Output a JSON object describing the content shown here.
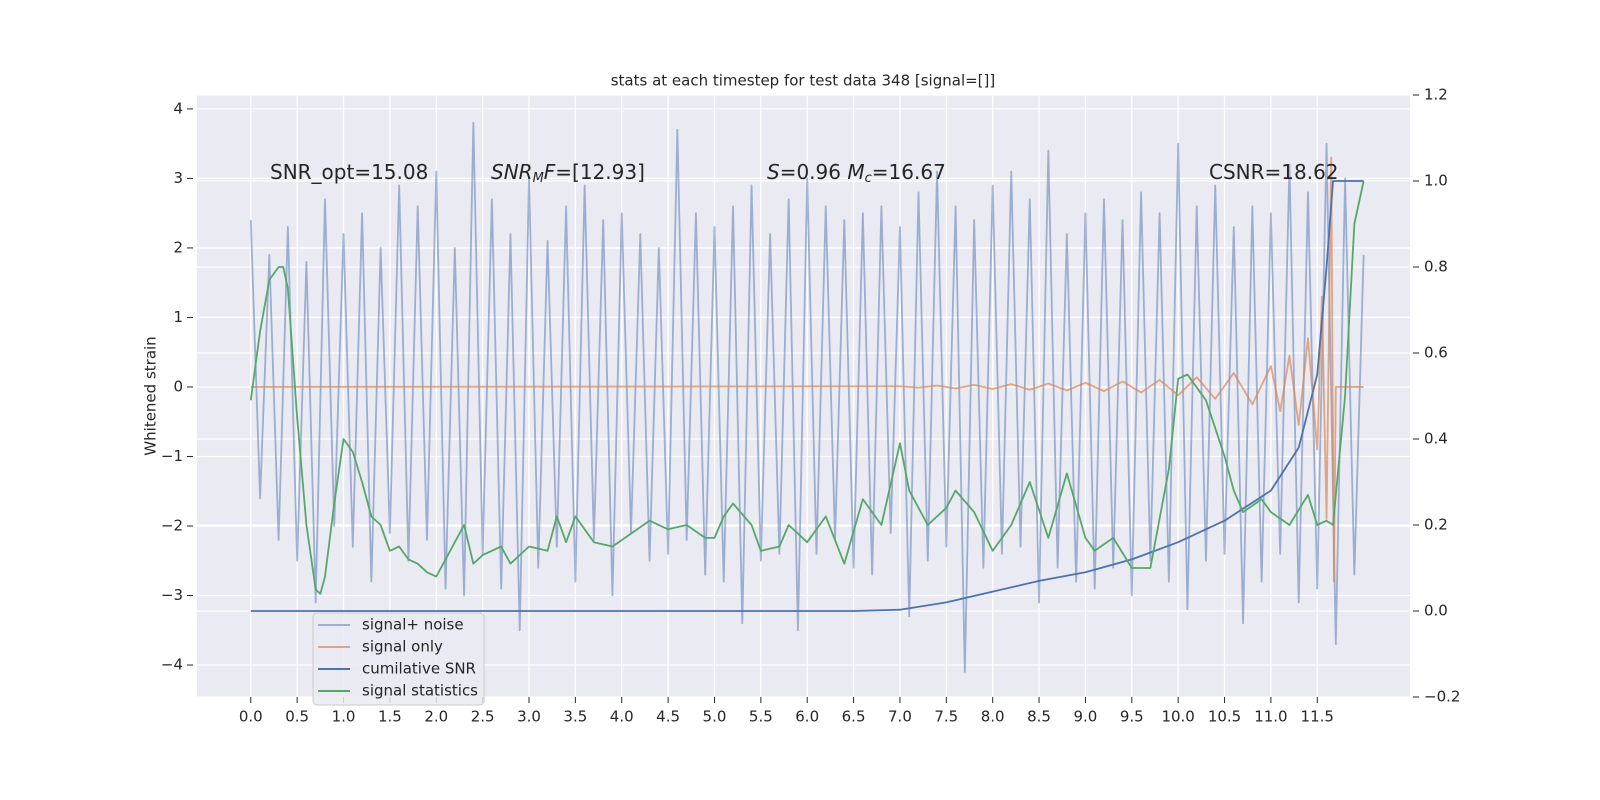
{
  "chart_data": {
    "type": "line",
    "title": "stats at each timestep for test data 348 [signal=[]]",
    "y_label": "Whitened strain",
    "background": "#eaeaf2",
    "grid": true,
    "legend_position": "lower left",
    "xlim": [
      -0.58,
      12.5
    ],
    "ylim": [
      -4.46,
      4.2
    ],
    "y2lim": [
      -0.2,
      1.2
    ],
    "xticks": [
      {
        "value": 0,
        "label": "0.0"
      },
      {
        "value": 0.5,
        "label": "0.5"
      },
      {
        "value": 1,
        "label": "1.0"
      },
      {
        "value": 1.5,
        "label": "1.5"
      },
      {
        "value": 2,
        "label": "2.0"
      },
      {
        "value": 2.5,
        "label": "2.5"
      },
      {
        "value": 3,
        "label": "3.0"
      },
      {
        "value": 3.5,
        "label": "3.5"
      },
      {
        "value": 4,
        "label": "4.0"
      },
      {
        "value": 4.5,
        "label": "4.5"
      },
      {
        "value": 5,
        "label": "5.0"
      },
      {
        "value": 5.5,
        "label": "5.5"
      },
      {
        "value": 6,
        "label": "6.0"
      },
      {
        "value": 6.5,
        "label": "6.5"
      },
      {
        "value": 7,
        "label": "7.0"
      },
      {
        "value": 7.5,
        "label": "7.5"
      },
      {
        "value": 8,
        "label": "8.0"
      },
      {
        "value": 8.5,
        "label": "8.5"
      },
      {
        "value": 9,
        "label": "9.0"
      },
      {
        "value": 9.5,
        "label": "9.5"
      },
      {
        "value": 10,
        "label": "10.0"
      },
      {
        "value": 10.5,
        "label": "10.5"
      },
      {
        "value": 11,
        "label": "11.0"
      },
      {
        "value": 11.5,
        "label": "11.5"
      }
    ],
    "yticks": [
      {
        "value": -4,
        "label": "−4"
      },
      {
        "value": -3,
        "label": "−3"
      },
      {
        "value": -2,
        "label": "−2"
      },
      {
        "value": -1,
        "label": "−1"
      },
      0,
      1,
      2,
      3,
      4
    ],
    "y2ticks": [
      {
        "value": -0.2,
        "label": "−0.2"
      },
      {
        "value": 0,
        "label": "0.0"
      },
      {
        "value": 0.2,
        "label": "0.2"
      },
      {
        "value": 0.4,
        "label": "0.4"
      },
      {
        "value": 0.6,
        "label": "0.6"
      },
      {
        "value": 0.8,
        "label": "0.8"
      },
      {
        "value": 1.0,
        "label": "1.0"
      },
      {
        "value": 1.2,
        "label": "1.2"
      }
    ],
    "annotations": [
      {
        "parts": [
          {
            "text": "SNR_opt=15.08"
          }
        ]
      },
      {
        "parts": [
          {
            "text": "SNR",
            "italic": true
          },
          {
            "text": "M",
            "italic": true,
            "sub": true
          },
          {
            "text": "F",
            "italic": true
          },
          {
            "text": "=[12.93]"
          }
        ]
      },
      {
        "parts": [
          {
            "text": "S",
            "italic": true
          },
          {
            "text": "=0.96   "
          },
          {
            "text": "M",
            "italic": true
          },
          {
            "text": "c",
            "italic": true,
            "sub": true
          },
          {
            "text": "=16.67"
          }
        ]
      },
      {
        "parts": [
          {
            "text": "CSNR=18.62"
          }
        ]
      }
    ],
    "series": [
      {
        "name": "signal+ noise",
        "color": "#4c72b0",
        "opacity": 0.5,
        "x": [
          0.0,
          0.1,
          0.2,
          0.3,
          0.4,
          0.5,
          0.6,
          0.7,
          0.8,
          0.9,
          1.0,
          1.1,
          1.2,
          1.3,
          1.4,
          1.5,
          1.6,
          1.7,
          1.8,
          1.9,
          2.0,
          2.1,
          2.2,
          2.3,
          2.4,
          2.5,
          2.6,
          2.7,
          2.8,
          2.9,
          3.0,
          3.1,
          3.2,
          3.3,
          3.4,
          3.5,
          3.6,
          3.7,
          3.8,
          3.9,
          4.0,
          4.1,
          4.2,
          4.3,
          4.4,
          4.5,
          4.6,
          4.7,
          4.8,
          4.9,
          5.0,
          5.1,
          5.2,
          5.3,
          5.4,
          5.5,
          5.6,
          5.7,
          5.8,
          5.9,
          6.0,
          6.1,
          6.2,
          6.3,
          6.4,
          6.5,
          6.6,
          6.7,
          6.8,
          6.9,
          7.0,
          7.1,
          7.2,
          7.3,
          7.4,
          7.5,
          7.6,
          7.7,
          7.8,
          7.9,
          8.0,
          8.1,
          8.2,
          8.3,
          8.4,
          8.5,
          8.6,
          8.7,
          8.8,
          8.9,
          9.0,
          9.1,
          9.2,
          9.3,
          9.4,
          9.5,
          9.6,
          9.7,
          9.8,
          9.9,
          10.0,
          10.1,
          10.2,
          10.3,
          10.4,
          10.5,
          10.6,
          10.7,
          10.8,
          10.9,
          11.0,
          11.1,
          11.2,
          11.3,
          11.4,
          11.5,
          11.6,
          11.7,
          11.8,
          11.9,
          12.0
        ],
        "values": [
          2.4,
          -1.6,
          1.9,
          -2.2,
          2.3,
          -2.5,
          1.8,
          -3.1,
          2.7,
          -2.0,
          2.2,
          -2.3,
          2.5,
          -2.8,
          2.0,
          -2.1,
          2.9,
          -2.5,
          2.6,
          -2.2,
          3.1,
          -2.9,
          2.0,
          -3.0,
          3.8,
          -2.4,
          2.7,
          -2.9,
          2.2,
          -3.5,
          3.0,
          -2.6,
          2.1,
          -2.3,
          2.6,
          -2.8,
          2.9,
          -2.2,
          2.4,
          -3.0,
          2.5,
          -2.1,
          2.2,
          -2.5,
          2.0,
          -2.4,
          3.7,
          -2.2,
          2.5,
          -2.7,
          2.3,
          -2.8,
          2.6,
          -3.4,
          2.9,
          -2.5,
          2.2,
          -2.4,
          2.7,
          -3.5,
          3.0,
          -2.4,
          2.6,
          -2.2,
          2.4,
          -2.6,
          2.5,
          -2.7,
          2.6,
          -2.1,
          2.3,
          -3.3,
          2.8,
          -2.5,
          3.1,
          -2.3,
          2.6,
          -4.1,
          2.4,
          -2.6,
          2.9,
          -2.4,
          3.1,
          -2.3,
          2.7,
          -3.1,
          3.4,
          -2.6,
          2.2,
          -2.8,
          2.5,
          -2.9,
          2.7,
          -2.6,
          2.4,
          -3.0,
          2.8,
          -2.5,
          2.5,
          -2.8,
          3.5,
          -3.2,
          2.6,
          -2.5,
          2.9,
          -2.4,
          2.3,
          -3.4,
          2.6,
          -2.8,
          2.5,
          -2.4,
          3.2,
          -3.1,
          2.8,
          -2.9,
          3.5,
          -3.7,
          3.0,
          -2.7,
          1.9
        ]
      },
      {
        "name": "signal only",
        "color": "#dd8452",
        "opacity": 0.7,
        "x": [
          0,
          7.0,
          7.2,
          7.4,
          7.6,
          7.8,
          8.0,
          8.2,
          8.4,
          8.6,
          8.8,
          9.0,
          9.2,
          9.4,
          9.6,
          9.8,
          10.0,
          10.2,
          10.4,
          10.6,
          10.8,
          11.0,
          11.1,
          11.2,
          11.3,
          11.4,
          11.5,
          11.55,
          11.6,
          11.65,
          11.68,
          11.7,
          12.0
        ],
        "values": [
          0,
          0.01,
          -0.01,
          0.02,
          -0.02,
          0.03,
          -0.03,
          0.04,
          -0.04,
          0.05,
          -0.05,
          0.06,
          -0.06,
          0.08,
          -0.08,
          0.1,
          -0.12,
          0.14,
          -0.17,
          0.2,
          -0.25,
          0.3,
          -0.35,
          0.45,
          -0.55,
          0.7,
          -0.9,
          1.3,
          -1.9,
          3.3,
          -2.8,
          0,
          0
        ]
      },
      {
        "name": "cumilative SNR",
        "color": "#4c72b0",
        "opacity": 1,
        "axis": "y2",
        "x": [
          0,
          6.5,
          7.0,
          7.5,
          8.0,
          8.5,
          9.0,
          9.5,
          10.0,
          10.5,
          11.0,
          11.3,
          11.5,
          11.6,
          11.67,
          12.0
        ],
        "values": [
          0,
          0,
          0.003,
          0.02,
          0.045,
          0.07,
          0.09,
          0.12,
          0.16,
          0.21,
          0.28,
          0.38,
          0.55,
          0.8,
          1.0,
          1.0
        ]
      },
      {
        "name": "signal statistics",
        "color": "#55a868",
        "opacity": 1,
        "axis": "y2",
        "x": [
          0,
          0.1,
          0.2,
          0.3,
          0.35,
          0.4,
          0.5,
          0.6,
          0.7,
          0.75,
          0.8,
          0.9,
          1.0,
          1.1,
          1.2,
          1.3,
          1.4,
          1.5,
          1.6,
          1.7,
          1.8,
          1.9,
          2.0,
          2.1,
          2.3,
          2.4,
          2.5,
          2.7,
          2.8,
          3.0,
          3.2,
          3.3,
          3.4,
          3.5,
          3.7,
          3.9,
          4.1,
          4.3,
          4.5,
          4.7,
          4.9,
          5.0,
          5.1,
          5.2,
          5.4,
          5.5,
          5.7,
          5.8,
          6.0,
          6.2,
          6.4,
          6.6,
          6.8,
          7.0,
          7.1,
          7.3,
          7.5,
          7.6,
          7.8,
          8.0,
          8.2,
          8.4,
          8.6,
          8.8,
          9.0,
          9.1,
          9.3,
          9.5,
          9.7,
          9.9,
          10.0,
          10.1,
          10.3,
          10.5,
          10.6,
          10.7,
          10.9,
          11.0,
          11.2,
          11.4,
          11.5,
          11.6,
          11.67,
          11.8,
          11.9,
          12.0
        ],
        "values": [
          0.49,
          0.65,
          0.77,
          0.8,
          0.8,
          0.75,
          0.45,
          0.2,
          0.05,
          0.04,
          0.08,
          0.25,
          0.4,
          0.37,
          0.3,
          0.22,
          0.2,
          0.14,
          0.15,
          0.12,
          0.11,
          0.09,
          0.08,
          0.12,
          0.2,
          0.11,
          0.13,
          0.15,
          0.11,
          0.15,
          0.14,
          0.22,
          0.16,
          0.22,
          0.16,
          0.15,
          0.18,
          0.21,
          0.19,
          0.2,
          0.17,
          0.17,
          0.22,
          0.25,
          0.2,
          0.14,
          0.15,
          0.2,
          0.16,
          0.22,
          0.11,
          0.26,
          0.2,
          0.39,
          0.28,
          0.2,
          0.24,
          0.28,
          0.23,
          0.14,
          0.2,
          0.3,
          0.17,
          0.32,
          0.17,
          0.14,
          0.17,
          0.1,
          0.1,
          0.33,
          0.54,
          0.55,
          0.49,
          0.36,
          0.28,
          0.23,
          0.26,
          0.23,
          0.2,
          0.27,
          0.2,
          0.21,
          0.2,
          0.5,
          0.9,
          1.0
        ]
      }
    ]
  }
}
